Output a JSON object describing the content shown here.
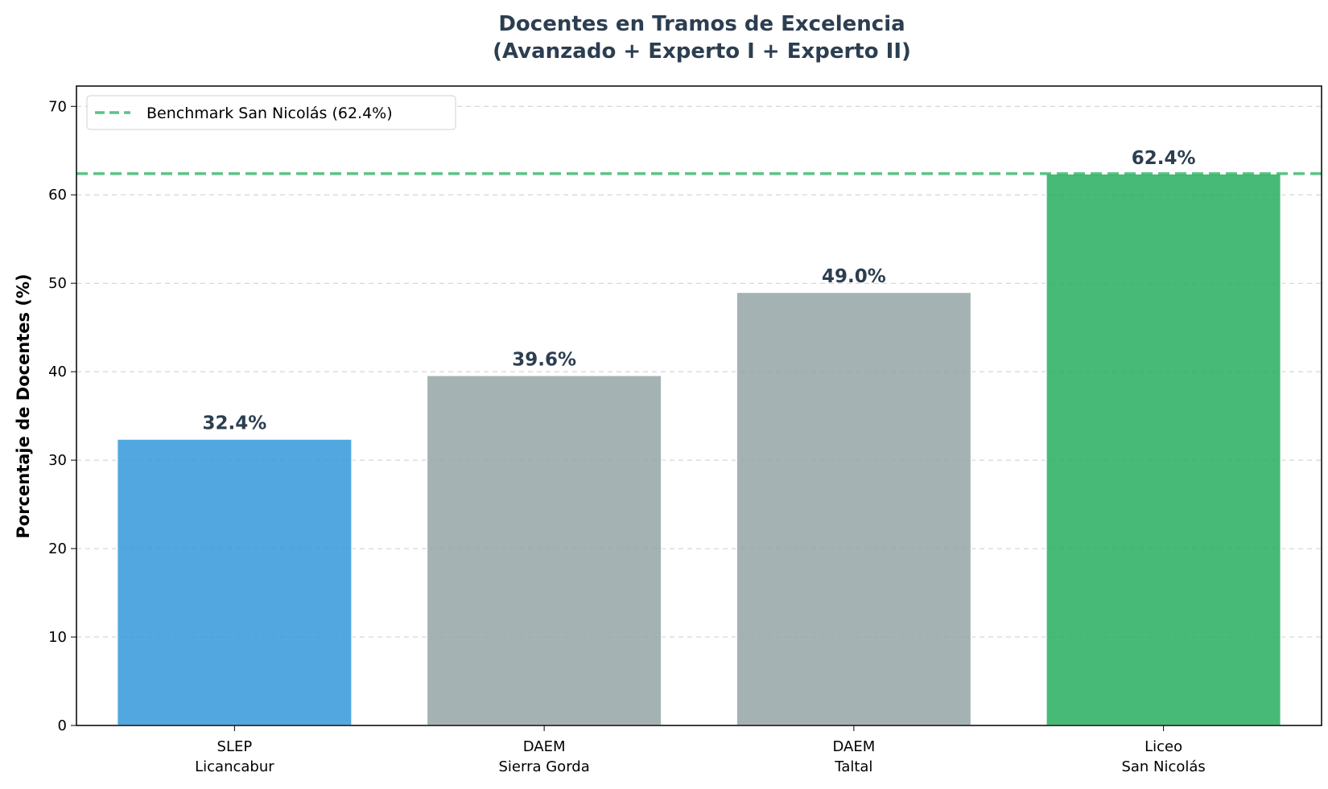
{
  "chart_data": {
    "type": "bar",
    "title": "Docentes en Tramos de Excelencia",
    "subtitle": "(Avanzado + Experto I + Experto II)",
    "xlabel": "",
    "ylabel": "Porcentaje de Docentes (%)",
    "ylim": [
      0,
      72.3
    ],
    "yticks": [
      0,
      10,
      20,
      30,
      40,
      50,
      60,
      70
    ],
    "grid": "y-dashed",
    "categories": [
      [
        "SLEP",
        "Licancabur"
      ],
      [
        "DAEM",
        "Sierra Gorda"
      ],
      [
        "DAEM",
        "Taltal"
      ],
      [
        "Liceo",
        "San Nicolás"
      ]
    ],
    "values": [
      32.4,
      39.6,
      49.0,
      62.4
    ],
    "value_labels": [
      "32.4%",
      "39.6%",
      "49.0%",
      "62.4%"
    ],
    "colors": [
      "#3498db",
      "#95a5a6",
      "#95a5a6",
      "#27ae60"
    ],
    "benchmark": {
      "value": 62.4,
      "label": "Benchmark San Nicolás (62.4%)",
      "color": "#27ae60",
      "style": "dashed"
    },
    "legend_position": "top-left"
  }
}
